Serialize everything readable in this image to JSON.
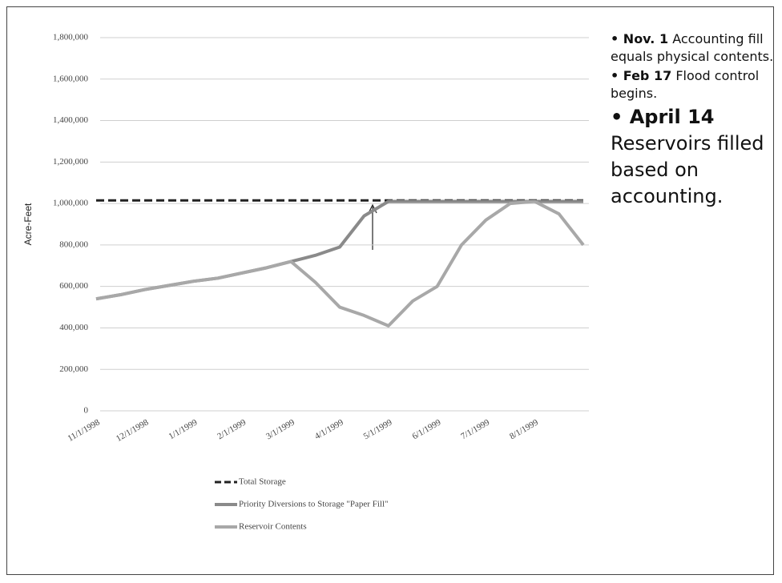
{
  "chart_data": {
    "type": "line",
    "y_label": "Acre-Feet",
    "categories": [
      "11/1/1998",
      null,
      "12/1/1998",
      null,
      "1/1/1999",
      null,
      "2/1/1999",
      null,
      "3/1/1999",
      null,
      "4/1/1999",
      null,
      "5/1/1999",
      null,
      "6/1/1999",
      null,
      "7/1/1999",
      null,
      "8/1/1999",
      null,
      null
    ],
    "series": [
      {
        "name": "Total Storage",
        "color": "#222222",
        "dashed": true,
        "values": [
          1015000,
          1015000,
          1015000,
          1015000,
          1015000,
          1015000,
          1015000,
          1015000,
          1015000,
          1015000,
          1015000,
          1015000,
          1015000,
          1015000,
          1015000,
          1015000,
          1015000,
          1015000,
          1015000,
          1015000,
          1015000
        ]
      },
      {
        "name": "Priority Diversions to Storage \"Paper Fill\"",
        "color": "#8a8a8a",
        "dashed": false,
        "values": [
          540000,
          560000,
          585000,
          605000,
          625000,
          640000,
          665000,
          690000,
          720000,
          750000,
          790000,
          940000,
          1010000,
          1010000,
          1010000,
          1010000,
          1010000,
          1010000,
          1010000,
          1010000,
          1010000
        ]
      },
      {
        "name": "Reservoir Contents",
        "color": "#a8a8a8",
        "dashed": false,
        "values": [
          540000,
          560000,
          585000,
          605000,
          625000,
          640000,
          665000,
          690000,
          720000,
          620000,
          500000,
          460000,
          410000,
          530000,
          600000,
          800000,
          920000,
          1000000,
          1010000,
          950000,
          800000
        ]
      }
    ],
    "ylim": [
      0,
      1800000
    ],
    "yticks": [
      0,
      {
        "value": 200000,
        "label": "200,000"
      },
      {
        "value": 400000,
        "label": "400,000"
      },
      {
        "value": 600000,
        "label": "600,000"
      },
      {
        "value": 800000,
        "label": "800,000"
      },
      {
        "value": 1000000,
        "label": "1,000,000"
      },
      {
        "value": 1200000,
        "label": "1,200,000"
      },
      {
        "value": 1400000,
        "label": "1,400,000"
      },
      {
        "value": 1600000,
        "label": "1,600,000"
      },
      {
        "value": 1800000,
        "label": "1,800,000"
      }
    ],
    "grid": true
  },
  "notes": [
    {
      "label": "Nov. 1",
      "text": "Accounting fill equals physical contents."
    },
    {
      "label": "Feb 17",
      "text": "Flood control begins."
    },
    {
      "label": "April 14",
      "text": "Reservoirs filled based on accounting."
    }
  ]
}
